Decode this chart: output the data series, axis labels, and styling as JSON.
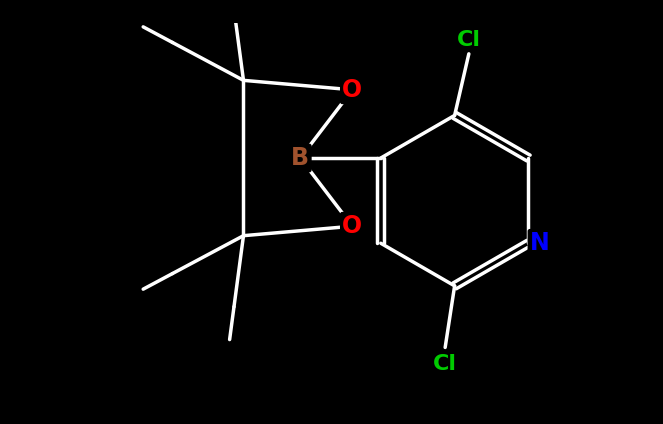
{
  "background_color": "#000000",
  "bond_color": "#ffffff",
  "bond_width": 2.5,
  "atom_colors": {
    "C": "#ffffff",
    "N": "#0000ff",
    "O": "#ff0000",
    "B": "#a0522d",
    "Cl": "#00cc00"
  },
  "font_size_atoms": 16,
  "font_size_labels": 14
}
